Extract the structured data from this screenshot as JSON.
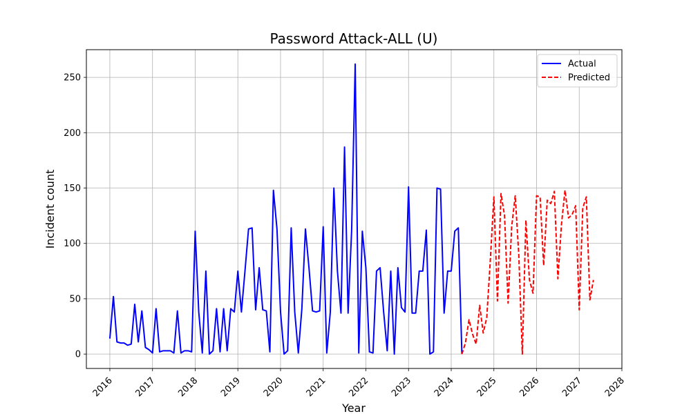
{
  "chart_data": {
    "type": "line",
    "title": "Password Attack-ALL (U)",
    "xlabel": "Year",
    "ylabel": "Incident count",
    "xlim": [
      2015.45,
      2028.0
    ],
    "ylim": [
      -13,
      275
    ],
    "x_ticks": [
      2016,
      2017,
      2018,
      2019,
      2020,
      2021,
      2022,
      2023,
      2024,
      2025,
      2026,
      2027,
      2028
    ],
    "x_tick_labels": [
      "2016",
      "2017",
      "2018",
      "2019",
      "2020",
      "2021",
      "2022",
      "2023",
      "2024",
      "2025",
      "2026",
      "2027",
      "2028"
    ],
    "y_ticks": [
      0,
      50,
      100,
      150,
      200,
      250
    ],
    "y_tick_labels": [
      "0",
      "50",
      "100",
      "150",
      "200",
      "250"
    ],
    "grid": true,
    "legend_position": "top-right",
    "series": [
      {
        "name": "Actual",
        "color": "#0000ff",
        "style": "solid",
        "start": "2016-01",
        "values": [
          14,
          52,
          11,
          10,
          10,
          8,
          9,
          45,
          11,
          39,
          6,
          4,
          1,
          41,
          2,
          3,
          3,
          3,
          1,
          39,
          1,
          3,
          3,
          2,
          111,
          38,
          1,
          75,
          0,
          3,
          41,
          2,
          41,
          3,
          41,
          38,
          75,
          38,
          75,
          113,
          114,
          40,
          78,
          40,
          39,
          2,
          148,
          113,
          38,
          0,
          3,
          114,
          38,
          1,
          41,
          113,
          78,
          39,
          38,
          39,
          115,
          1,
          38,
          150,
          75,
          37,
          187,
          37,
          112,
          262,
          1,
          111,
          78,
          2,
          1,
          75,
          78,
          38,
          3,
          75,
          0,
          78,
          42,
          38,
          151,
          37,
          37,
          75,
          75,
          112,
          0,
          2,
          150,
          149,
          37,
          75,
          75,
          111,
          114,
          0
        ]
      },
      {
        "name": "Predicted",
        "color": "#ff0000",
        "style": "dashed",
        "start": "2024-04",
        "values": [
          0,
          10,
          31,
          18,
          9,
          44,
          19,
          33,
          85,
          142,
          48,
          145,
          125,
          46,
          115,
          143,
          90,
          0,
          121,
          67,
          55,
          143,
          142,
          80,
          139,
          136,
          147,
          68,
          117,
          148,
          123,
          126,
          134,
          40,
          132,
          142,
          49,
          67
        ]
      }
    ]
  }
}
